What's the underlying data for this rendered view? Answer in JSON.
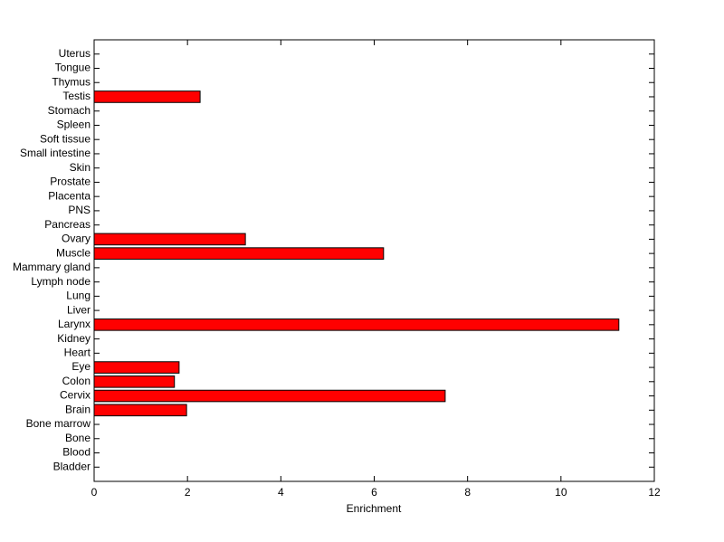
{
  "chart_data": {
    "type": "barh",
    "xlabel": "Enrichment",
    "categories": [
      "Bladder",
      "Blood",
      "Bone",
      "Bone marrow",
      "Brain",
      "Cervix",
      "Colon",
      "Eye",
      "Heart",
      "Kidney",
      "Larynx",
      "Liver",
      "Lung",
      "Lymph node",
      "Mammary gland",
      "Muscle",
      "Ovary",
      "Pancreas",
      "PNS",
      "Placenta",
      "Prostate",
      "Skin",
      "Small intestine",
      "Soft tissue",
      "Spleen",
      "Stomach",
      "Testis",
      "Thymus",
      "Tongue",
      "Uterus"
    ],
    "values": [
      0,
      0,
      0,
      0,
      1.98,
      7.52,
      1.72,
      1.82,
      0,
      0,
      11.24,
      0,
      0,
      0,
      0,
      6.2,
      3.24,
      0,
      0,
      0,
      0,
      0,
      0,
      0,
      0,
      0,
      2.27,
      0,
      0,
      0
    ],
    "color": "#ff0000",
    "xlim": [
      0,
      12
    ],
    "xticks": [
      0,
      2,
      4,
      6,
      8,
      10,
      12
    ],
    "grid": false
  }
}
